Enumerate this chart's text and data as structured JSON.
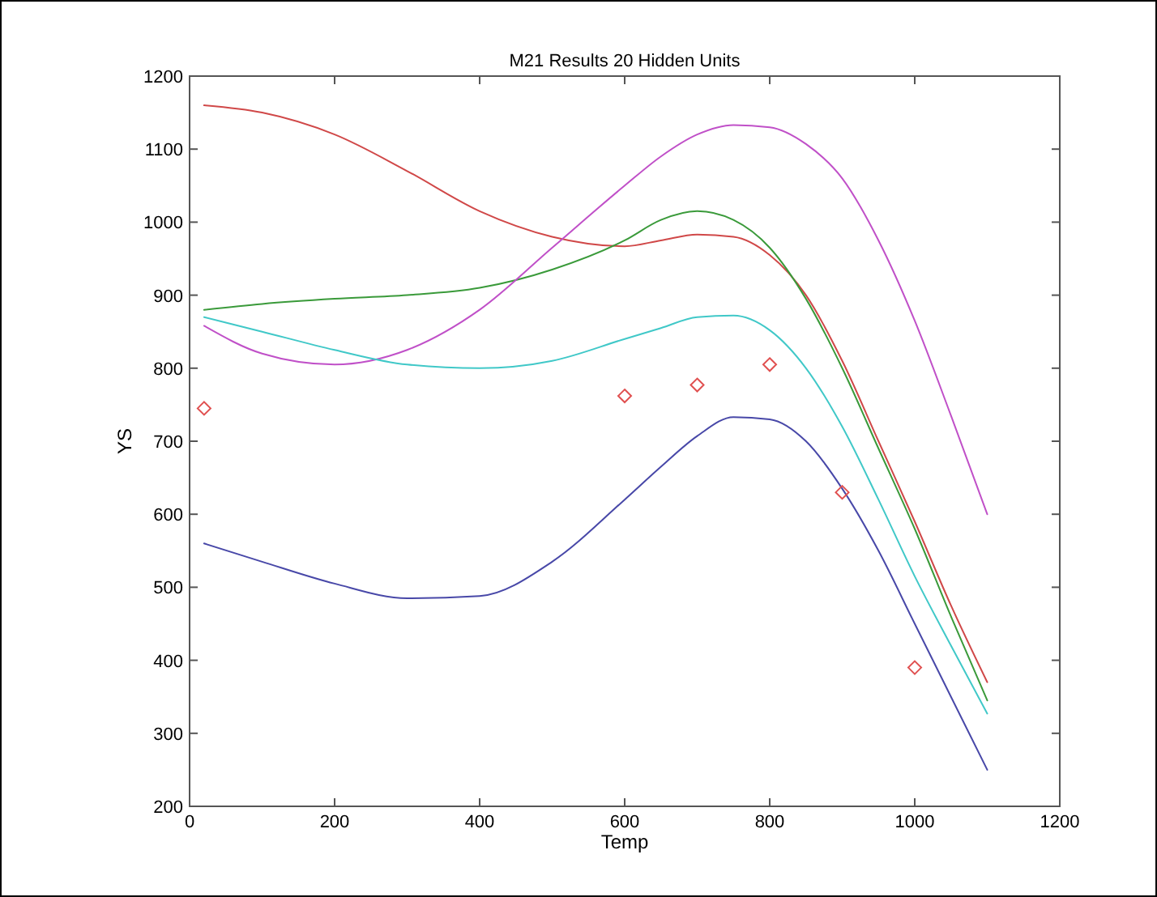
{
  "chart_data": {
    "type": "line",
    "title": "M21 Results 20 Hidden Units",
    "xlabel": "Temp",
    "ylabel": "YS",
    "xlim": [
      0,
      1200
    ],
    "xticks": [
      0,
      200,
      400,
      600,
      800,
      1000,
      1200
    ],
    "ylim": [
      200,
      1200
    ],
    "yticks": [
      200,
      300,
      400,
      500,
      600,
      700,
      800,
      900,
      1000,
      1100,
      1200
    ],
    "grid": false,
    "marker": "none",
    "line_style": "solid",
    "x": [
      20,
      100,
      200,
      300,
      400,
      500,
      600,
      650,
      700,
      750,
      800,
      850,
      900,
      950,
      1000,
      1050,
      1100
    ],
    "series": [
      {
        "color": "#d04848",
        "values": [
          1160,
          1150,
          1120,
          1070,
          1015,
          980,
          967,
          975,
          983,
          980,
          955,
          900,
          810,
          700,
          590,
          475,
          370
        ]
      },
      {
        "color": "#3a9a3a",
        "values": [
          880,
          888,
          895,
          900,
          910,
          935,
          975,
          1003,
          1015,
          1003,
          965,
          895,
          800,
          690,
          580,
          460,
          345
        ]
      },
      {
        "color": "#c050c8",
        "values": [
          858,
          820,
          805,
          825,
          880,
          965,
          1050,
          1090,
          1120,
          1133,
          1130,
          1107,
          1060,
          975,
          865,
          735,
          600
        ]
      },
      {
        "color": "#40c8c8",
        "values": [
          870,
          850,
          825,
          805,
          800,
          810,
          840,
          855,
          870,
          872,
          852,
          800,
          720,
          620,
          515,
          420,
          327
        ]
      },
      {
        "color": "#4848a8",
        "values": [
          560,
          535,
          505,
          485,
          488,
          535,
          620,
          665,
          707,
          733,
          730,
          700,
          635,
          550,
          450,
          350,
          250
        ]
      },
      {
        "type": "scatter",
        "marker": "diamond",
        "color": "#e05050",
        "x": [
          20,
          600,
          700,
          800,
          900,
          1000
        ],
        "values": [
          745,
          762,
          777,
          805,
          630,
          390
        ]
      }
    ]
  }
}
